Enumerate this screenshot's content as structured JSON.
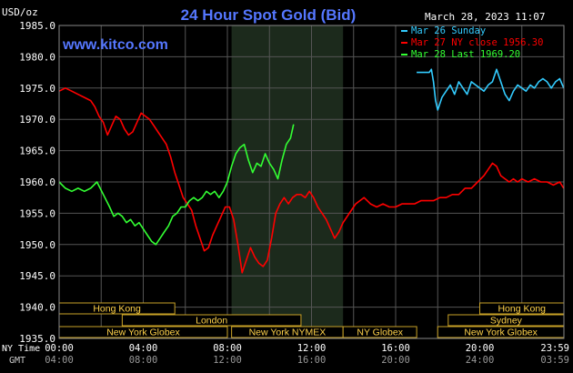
{
  "chart_data": {
    "type": "line",
    "title": "24 Hour Spot Gold (Bid)",
    "unit_label": "USD/oz",
    "watermark": "www.kitco.com",
    "timestamp": "March 28, 2023 11:07",
    "ylim": [
      1935,
      1985
    ],
    "y_ticks": [
      "1985.0",
      "1980.0",
      "1975.0",
      "1970.0",
      "1965.0",
      "1960.0",
      "1955.0",
      "1950.0",
      "1945.0",
      "1940.0",
      "1935.0"
    ],
    "x_row_label": "NY Time",
    "gmt_row_label": "GMT",
    "x_ticks": [
      "00:00",
      "04:00",
      "08:00",
      "12:00",
      "16:00",
      "20:00",
      "23:59"
    ],
    "gmt_ticks": [
      "04:00",
      "08:00",
      "12:00",
      "16:00",
      "20:00",
      "24:00",
      "03:59"
    ],
    "legend": [
      {
        "label": "Mar 26 Sunday",
        "color": "#33ccff"
      },
      {
        "label": "Mar 27 NY close 1956.30",
        "color": "#ff0000"
      },
      {
        "label": "Mar 28 Last 1969.20",
        "color": "#33ff33"
      }
    ],
    "sessions": [
      {
        "label": "Hong Kong",
        "start": 0.0,
        "end": 5.5,
        "row": 0
      },
      {
        "label": "Hong Kong",
        "start": 20.0,
        "end": 24.0,
        "row": 0
      },
      {
        "label": "London",
        "start": 3.0,
        "end": 11.5,
        "row": 1
      },
      {
        "label": "Sydney",
        "start": 18.5,
        "end": 24.0,
        "row": 1
      },
      {
        "label": "New York Globex",
        "start": 0.0,
        "end": 8.0,
        "row": 2
      },
      {
        "label": "New York NYMEX",
        "start": 8.2,
        "end": 13.5,
        "row": 2
      },
      {
        "label": "NY Globex",
        "start": 13.5,
        "end": 17.0,
        "row": 2
      },
      {
        "label": "New York Globex",
        "start": 18.0,
        "end": 24.0,
        "row": 2
      }
    ],
    "series": [
      {
        "name": "Mar 26 Sunday",
        "color": "#33ccff",
        "x": [
          17.0,
          17.6,
          17.7,
          17.8,
          17.9,
          18.0,
          18.1,
          18.2,
          18.4,
          18.6,
          18.8,
          19.0,
          19.2,
          19.4,
          19.6,
          19.8,
          20.0,
          20.2,
          20.4,
          20.6,
          20.8,
          21.0,
          21.2,
          21.4,
          21.6,
          21.8,
          22.0,
          22.2,
          22.4,
          22.6,
          22.8,
          23.0,
          23.2,
          23.4,
          23.6,
          23.8,
          23.99
        ],
        "y": [
          1977.5,
          1977.5,
          1978.0,
          1976.0,
          1973.0,
          1971.5,
          1972.5,
          1973.5,
          1974.5,
          1975.5,
          1974.0,
          1976.0,
          1975.0,
          1974.0,
          1976.0,
          1975.5,
          1975.0,
          1974.5,
          1975.5,
          1976.0,
          1978.0,
          1976.0,
          1974.0,
          1973.0,
          1974.5,
          1975.5,
          1975.0,
          1974.5,
          1975.5,
          1975.0,
          1976.0,
          1976.5,
          1976.0,
          1975.0,
          1976.0,
          1976.5,
          1975.0
        ]
      },
      {
        "name": "Mar 27 NY close 1956.30",
        "color": "#ff0000",
        "x": [
          0.0,
          0.3,
          0.6,
          0.9,
          1.2,
          1.5,
          1.7,
          1.9,
          2.1,
          2.3,
          2.5,
          2.7,
          2.9,
          3.1,
          3.3,
          3.5,
          3.7,
          3.9,
          4.1,
          4.3,
          4.5,
          4.7,
          4.9,
          5.1,
          5.3,
          5.5,
          5.7,
          5.9,
          6.1,
          6.3,
          6.5,
          6.7,
          6.9,
          7.1,
          7.3,
          7.5,
          7.7,
          7.9,
          8.1,
          8.3,
          8.5,
          8.7,
          8.9,
          9.1,
          9.3,
          9.5,
          9.7,
          9.9,
          10.1,
          10.3,
          10.5,
          10.7,
          10.9,
          11.1,
          11.3,
          11.5,
          11.7,
          11.9,
          12.1,
          12.3,
          12.5,
          12.7,
          12.9,
          13.1,
          13.3,
          13.5,
          13.7,
          13.9,
          14.1,
          14.3,
          14.5,
          14.8,
          15.1,
          15.4,
          15.7,
          16.0,
          16.3,
          16.6,
          16.9,
          17.2,
          17.5,
          17.8,
          18.1,
          18.4,
          18.7,
          19.0,
          19.3,
          19.6,
          19.9,
          20.2,
          20.4,
          20.6,
          20.8,
          21.0,
          21.2,
          21.4,
          21.6,
          21.8,
          22.0,
          22.3,
          22.6,
          22.9,
          23.2,
          23.5,
          23.8,
          23.99
        ],
        "y": [
          1974.5,
          1975.0,
          1974.5,
          1974.0,
          1973.5,
          1973.0,
          1972.0,
          1970.5,
          1969.5,
          1967.5,
          1969.0,
          1970.5,
          1970.0,
          1968.5,
          1967.5,
          1968.0,
          1969.5,
          1971.0,
          1970.5,
          1970.0,
          1969.0,
          1968.0,
          1967.0,
          1966.0,
          1964.0,
          1961.5,
          1959.5,
          1957.5,
          1956.5,
          1955.5,
          1953.0,
          1951.0,
          1949.0,
          1949.5,
          1951.5,
          1953.0,
          1954.5,
          1956.0,
          1956.0,
          1954.0,
          1950.0,
          1945.5,
          1947.5,
          1949.5,
          1948.0,
          1947.0,
          1946.5,
          1947.5,
          1951.0,
          1955.0,
          1956.5,
          1957.5,
          1956.5,
          1957.5,
          1958.0,
          1958.0,
          1957.5,
          1958.5,
          1957.5,
          1956.0,
          1955.0,
          1954.0,
          1952.5,
          1951.0,
          1952.0,
          1953.5,
          1954.5,
          1955.5,
          1956.5,
          1957.0,
          1957.5,
          1956.5,
          1956.0,
          1956.5,
          1956.0,
          1956.0,
          1956.5,
          1956.5,
          1956.5,
          1957.0,
          1957.0,
          1957.0,
          1957.5,
          1957.5,
          1958.0,
          1958.0,
          1959.0,
          1959.0,
          1960.0,
          1961.0,
          1962.0,
          1963.0,
          1962.5,
          1961.0,
          1960.5,
          1960.0,
          1960.5,
          1960.0,
          1960.5,
          1960.0,
          1960.5,
          1960.0,
          1960.0,
          1959.5,
          1960.0,
          1959.0
        ]
      },
      {
        "name": "Mar 28 Last 1969.20",
        "color": "#33ff33",
        "x": [
          0.0,
          0.3,
          0.6,
          0.9,
          1.2,
          1.5,
          1.8,
          2.1,
          2.4,
          2.6,
          2.8,
          3.0,
          3.2,
          3.4,
          3.6,
          3.8,
          4.0,
          4.2,
          4.4,
          4.6,
          4.8,
          5.0,
          5.2,
          5.4,
          5.6,
          5.8,
          6.0,
          6.2,
          6.4,
          6.6,
          6.8,
          7.0,
          7.2,
          7.4,
          7.6,
          7.8,
          8.0,
          8.2,
          8.4,
          8.6,
          8.8,
          9.0,
          9.2,
          9.4,
          9.6,
          9.8,
          10.0,
          10.2,
          10.4,
          10.6,
          10.8,
          11.0,
          11.15
        ],
        "y": [
          1960.0,
          1959.0,
          1958.5,
          1959.0,
          1958.5,
          1959.0,
          1960.0,
          1958.0,
          1956.0,
          1954.5,
          1955.0,
          1954.5,
          1953.5,
          1954.0,
          1953.0,
          1953.5,
          1952.5,
          1951.5,
          1950.5,
          1950.0,
          1951.0,
          1952.0,
          1953.0,
          1954.5,
          1955.0,
          1956.0,
          1956.0,
          1957.0,
          1957.5,
          1957.0,
          1957.5,
          1958.5,
          1958.0,
          1958.5,
          1957.5,
          1958.5,
          1960.0,
          1962.5,
          1964.5,
          1965.5,
          1966.0,
          1963.5,
          1961.5,
          1963.0,
          1962.5,
          1964.5,
          1963.0,
          1962.0,
          1960.5,
          1963.5,
          1966.0,
          1967.0,
          1969.2
        ]
      }
    ]
  }
}
